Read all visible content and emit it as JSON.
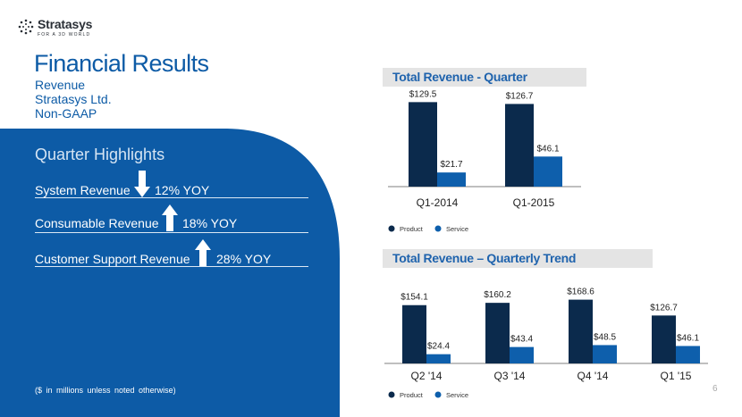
{
  "logo": {
    "name": "Stratasys",
    "tagline": "FOR A 3D WORLD"
  },
  "title": "Financial Results",
  "subtitle_lines": [
    "Revenue",
    "Stratasys Ltd.",
    "Non-GAAP"
  ],
  "highlights": {
    "title": "Quarter Highlights",
    "items": [
      {
        "label": "System Revenue",
        "direction": "down",
        "value": "12% YOY"
      },
      {
        "label": "Consumable Revenue",
        "direction": "up",
        "value": "18% YOY"
      },
      {
        "label": "Customer Support Revenue",
        "direction": "up",
        "value": "28% YOY"
      }
    ]
  },
  "footnote": "($ in millions unless noted otherwise)",
  "page_number": "6",
  "colors": {
    "product": "#0b2a4c",
    "service": "#0e5fac",
    "panel_blue": "#0d5ba6",
    "title_blue": "#0d5ba6"
  },
  "chart_data": [
    {
      "type": "bar",
      "title": "Total Revenue - Quarter",
      "categories": [
        "Q1-2014",
        "Q1-2015"
      ],
      "series": [
        {
          "name": "Product",
          "values": [
            129.5,
            126.7
          ],
          "labels": [
            "$129.5",
            "$126.7"
          ]
        },
        {
          "name": "Service",
          "values": [
            21.7,
            46.1
          ],
          "labels": [
            "$21.7",
            "$46.1"
          ]
        }
      ],
      "ylim": [
        0,
        130
      ],
      "grid": false,
      "legend": "bottom-left"
    },
    {
      "type": "bar",
      "title": "Total Revenue – Quarterly Trend",
      "categories": [
        "Q2 '14",
        "Q3 '14",
        "Q4 '14",
        "Q1 '15"
      ],
      "series": [
        {
          "name": "Product",
          "values": [
            154.1,
            160.2,
            168.6,
            126.7
          ],
          "labels": [
            "$154.1",
            "$160.2",
            "$168.6",
            "$126.7"
          ]
        },
        {
          "name": "Service",
          "values": [
            24.4,
            43.4,
            48.5,
            46.1
          ],
          "labels": [
            "$24.4",
            "$43.4",
            "$48.5",
            "$46.1"
          ]
        }
      ],
      "ylim": [
        0,
        170
      ],
      "grid": false,
      "legend": "bottom-left"
    }
  ]
}
